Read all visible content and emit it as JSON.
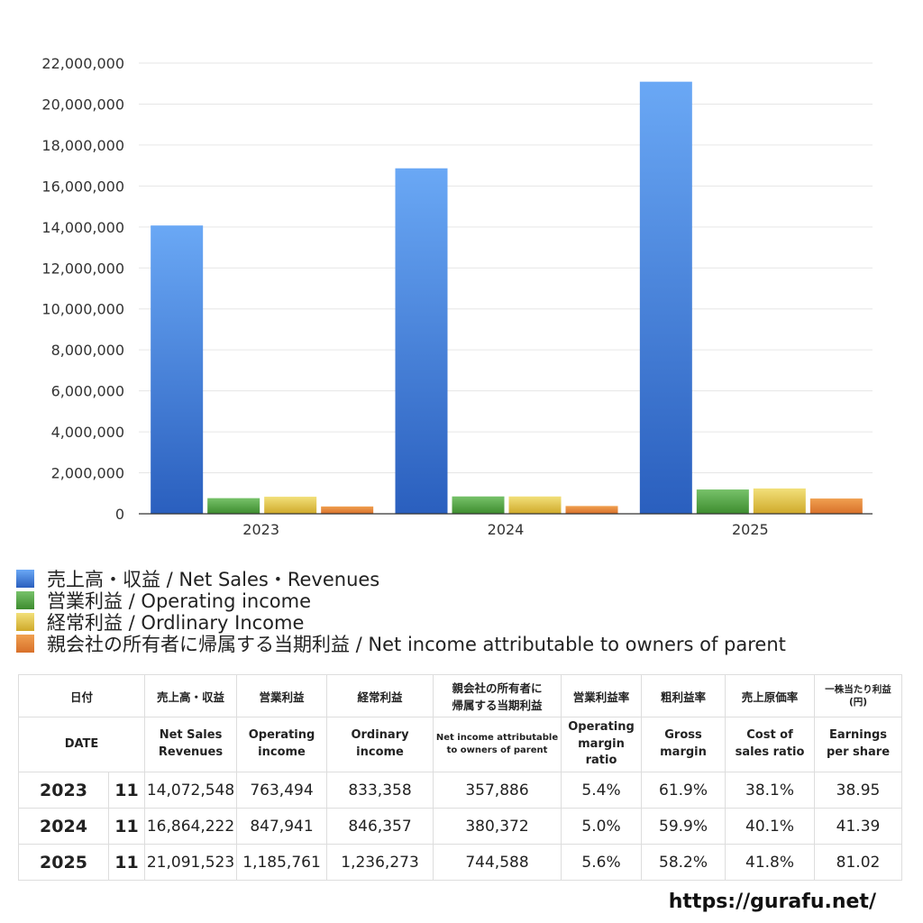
{
  "chart_data": {
    "type": "bar",
    "categories": [
      "2023",
      "2024",
      "2025"
    ],
    "series": [
      {
        "name": "売上高・収益 / Net Sales・Revenues",
        "values": [
          14072548,
          16864222,
          21091523
        ],
        "color_top": "#6aa8f5",
        "color_bottom": "#2a5fbe"
      },
      {
        "name": "営業利益 / Operating income",
        "values": [
          763494,
          847941,
          1185761
        ],
        "color_top": "#77c26a",
        "color_bottom": "#3d8c2e"
      },
      {
        "name": "経常利益 / Ordlinary Income",
        "values": [
          833358,
          846357,
          1236273
        ],
        "color_top": "#f2e07a",
        "color_bottom": "#cfa92a"
      },
      {
        "name": "親会社の所有者に帰属する当期利益 / Net income attributable to owners of parent",
        "values": [
          357886,
          380372,
          744588
        ],
        "color_top": "#f0a050",
        "color_bottom": "#d8702a"
      }
    ],
    "ylim": [
      0,
      22000000
    ],
    "yticks": [
      "22,000,000",
      "20,000,000",
      "18,000,000",
      "16,000,000",
      "14,000,000",
      "12,000,000",
      "10,000,000",
      "8,000,000",
      "6,000,000",
      "4,000,000",
      "2,000,000",
      "0"
    ],
    "grid": true,
    "legend_position": "bottom"
  },
  "table": {
    "headers_jp": {
      "date": "日付",
      "sales": "売上高・収益",
      "operating": "営業利益",
      "ordinary": "経常利益",
      "net_income_line1": "親会社の所有者に",
      "net_income_line2": "帰属する当期利益",
      "op_margin": "営業利益率",
      "gross_margin": "粗利益率",
      "cost_ratio": "売上原価率",
      "eps_line1": "一株当たり利益",
      "eps_line2": "(円)"
    },
    "headers_en": {
      "date": "DATE",
      "sales_line1": "Net Sales",
      "sales_line2": "Revenues",
      "operating_line1": "Operating",
      "operating_line2": "income",
      "ordinary_line1": "Ordinary",
      "ordinary_line2": "income",
      "net_income_line1": "Net income attributable",
      "net_income_line2": "to owners of parent",
      "op_margin_line1": "Operating",
      "op_margin_line2": "margin",
      "op_margin_line3": "ratio",
      "gross_margin_line1": "Gross",
      "gross_margin_line2": "margin",
      "cost_ratio_line1": "Cost of",
      "cost_ratio_line2": "sales ratio",
      "eps_line1": "Earnings",
      "eps_line2": "per share"
    },
    "rows": [
      {
        "year": "2023",
        "month": "11",
        "sales": "14,072,548",
        "operating": "763,494",
        "ordinary": "833,358",
        "net_income": "357,886",
        "op_margin": "5.4%",
        "gross_margin": "61.9%",
        "cost_ratio": "38.1%",
        "eps": "38.95"
      },
      {
        "year": "2024",
        "month": "11",
        "sales": "16,864,222",
        "operating": "847,941",
        "ordinary": "846,357",
        "net_income": "380,372",
        "op_margin": "5.0%",
        "gross_margin": "59.9%",
        "cost_ratio": "40.1%",
        "eps": "41.39"
      },
      {
        "year": "2025",
        "month": "11",
        "sales": "21,091,523",
        "operating": "1,185,761",
        "ordinary": "1,236,273",
        "net_income": "744,588",
        "op_margin": "5.6%",
        "gross_margin": "58.2%",
        "cost_ratio": "41.8%",
        "eps": "81.02"
      }
    ]
  },
  "footer": {
    "url": "https://gurafu.net/"
  }
}
